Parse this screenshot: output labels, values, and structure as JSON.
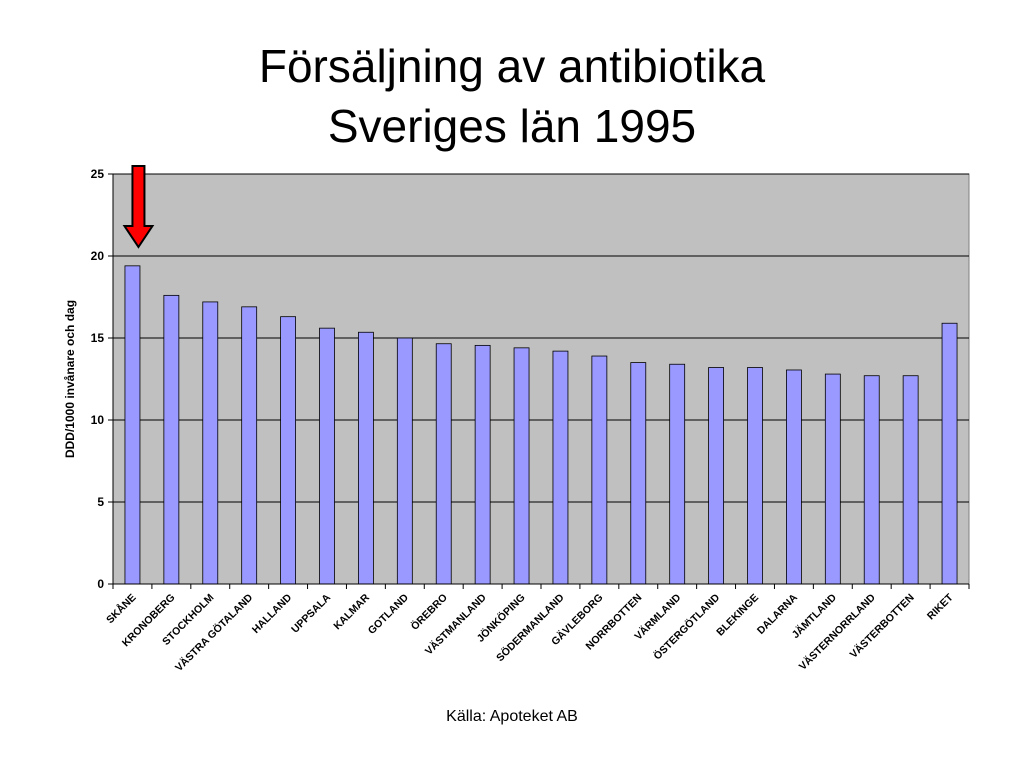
{
  "slide": {
    "title_line1": "Försäljning av antibiotika",
    "title_line2": "Sveriges län 1995",
    "source": "Källa: Apoteket AB"
  },
  "chart_data": {
    "type": "bar",
    "ylabel": "DDD/1000 invånare och dag",
    "xlabel": "",
    "ylim": [
      0,
      25
    ],
    "yticks": [
      0,
      5,
      10,
      15,
      20,
      25
    ],
    "grid": true,
    "categories": [
      "SKÅNE",
      "KRONOBERG",
      "STOCKHOLM",
      "VÄSTRA GÖTALAND",
      "HALLAND",
      "UPPSALA",
      "KALMAR",
      "GOTLAND",
      "ÖREBRO",
      "VÄSTMANLAND",
      "JÖNKÖPING",
      "SÖDERMANLAND",
      "GÄVLEBORG",
      "NORRBOTTEN",
      "VÄRMLAND",
      "ÖSTERGÖTLAND",
      "BLEKINGE",
      "DALARNA",
      "JÄMTLAND",
      "VÄSTERNORRLAND",
      "VÄSTERBOTTEN",
      "RIKET"
    ],
    "values": [
      19.4,
      17.6,
      17.2,
      16.9,
      16.3,
      15.6,
      15.35,
      15.0,
      14.65,
      14.55,
      14.4,
      14.2,
      13.9,
      13.5,
      13.4,
      13.2,
      13.2,
      13.05,
      12.8,
      12.7,
      12.7,
      15.9
    ],
    "bar_color": "#9999ff",
    "plot_background": "#c0c0c0",
    "highlight": {
      "category": "SKÅNE",
      "marker": "red-down-arrow",
      "color": "#ff0000"
    }
  }
}
